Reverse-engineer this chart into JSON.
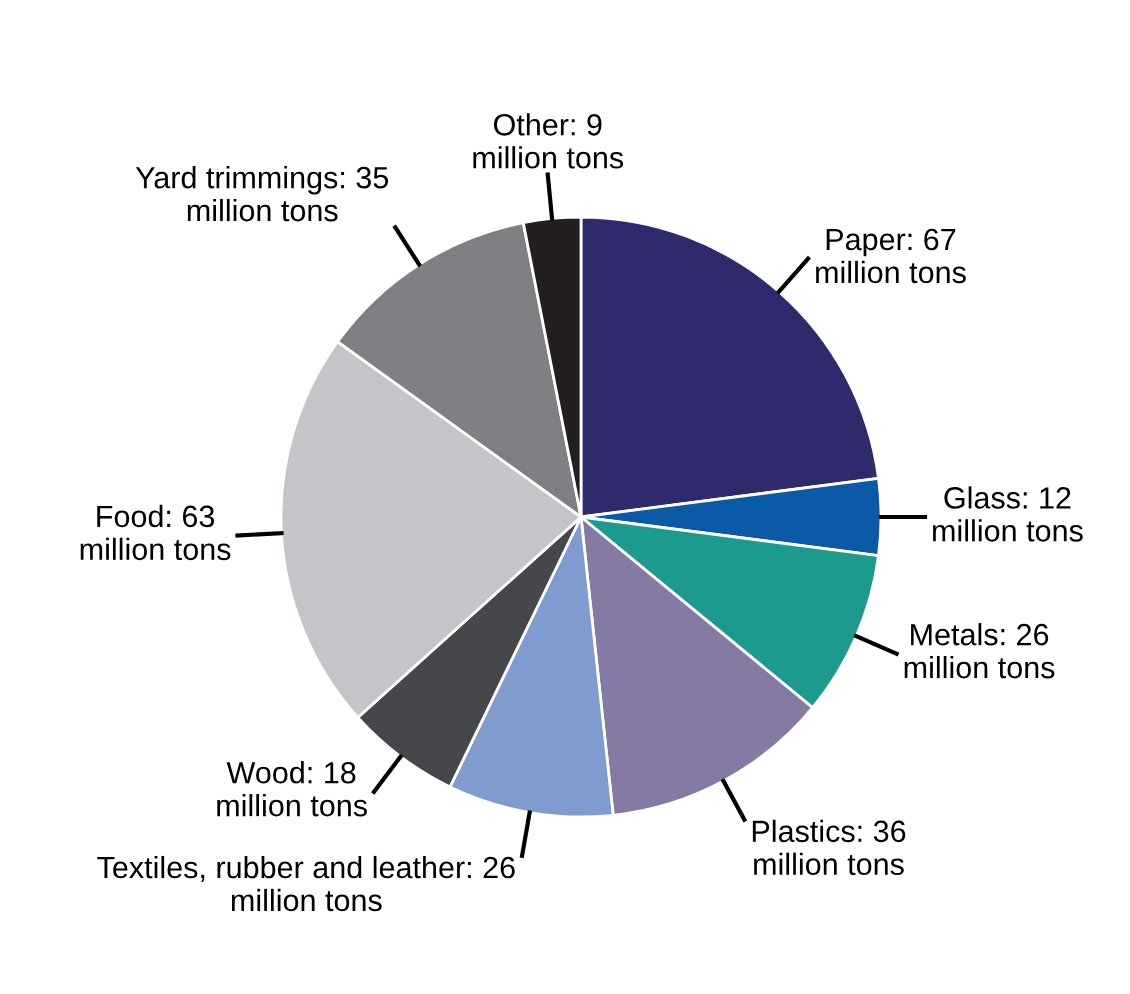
{
  "chart_data": {
    "type": "pie",
    "categories": [
      "Paper",
      "Glass",
      "Metals",
      "Plastics",
      "Textiles, rubber and leather",
      "Wood",
      "Food",
      "Yard trimmings",
      "Other"
    ],
    "values": [
      67,
      12,
      26,
      36,
      26,
      18,
      63,
      35,
      9
    ],
    "colors": [
      "#2e2a6b",
      "#0a5aa8",
      "#1d9a8e",
      "#857aa3",
      "#7f9bcf",
      "#45474b",
      "#c4c5c8",
      "#7f8083",
      "#231f20"
    ],
    "value_labels": [
      "67 million tons",
      "12 million tons",
      "26 million tons",
      "36 million tons",
      "26 million tons",
      "18 million tons",
      "63 million tons",
      "35 million tons",
      "9 million tons"
    ]
  }
}
